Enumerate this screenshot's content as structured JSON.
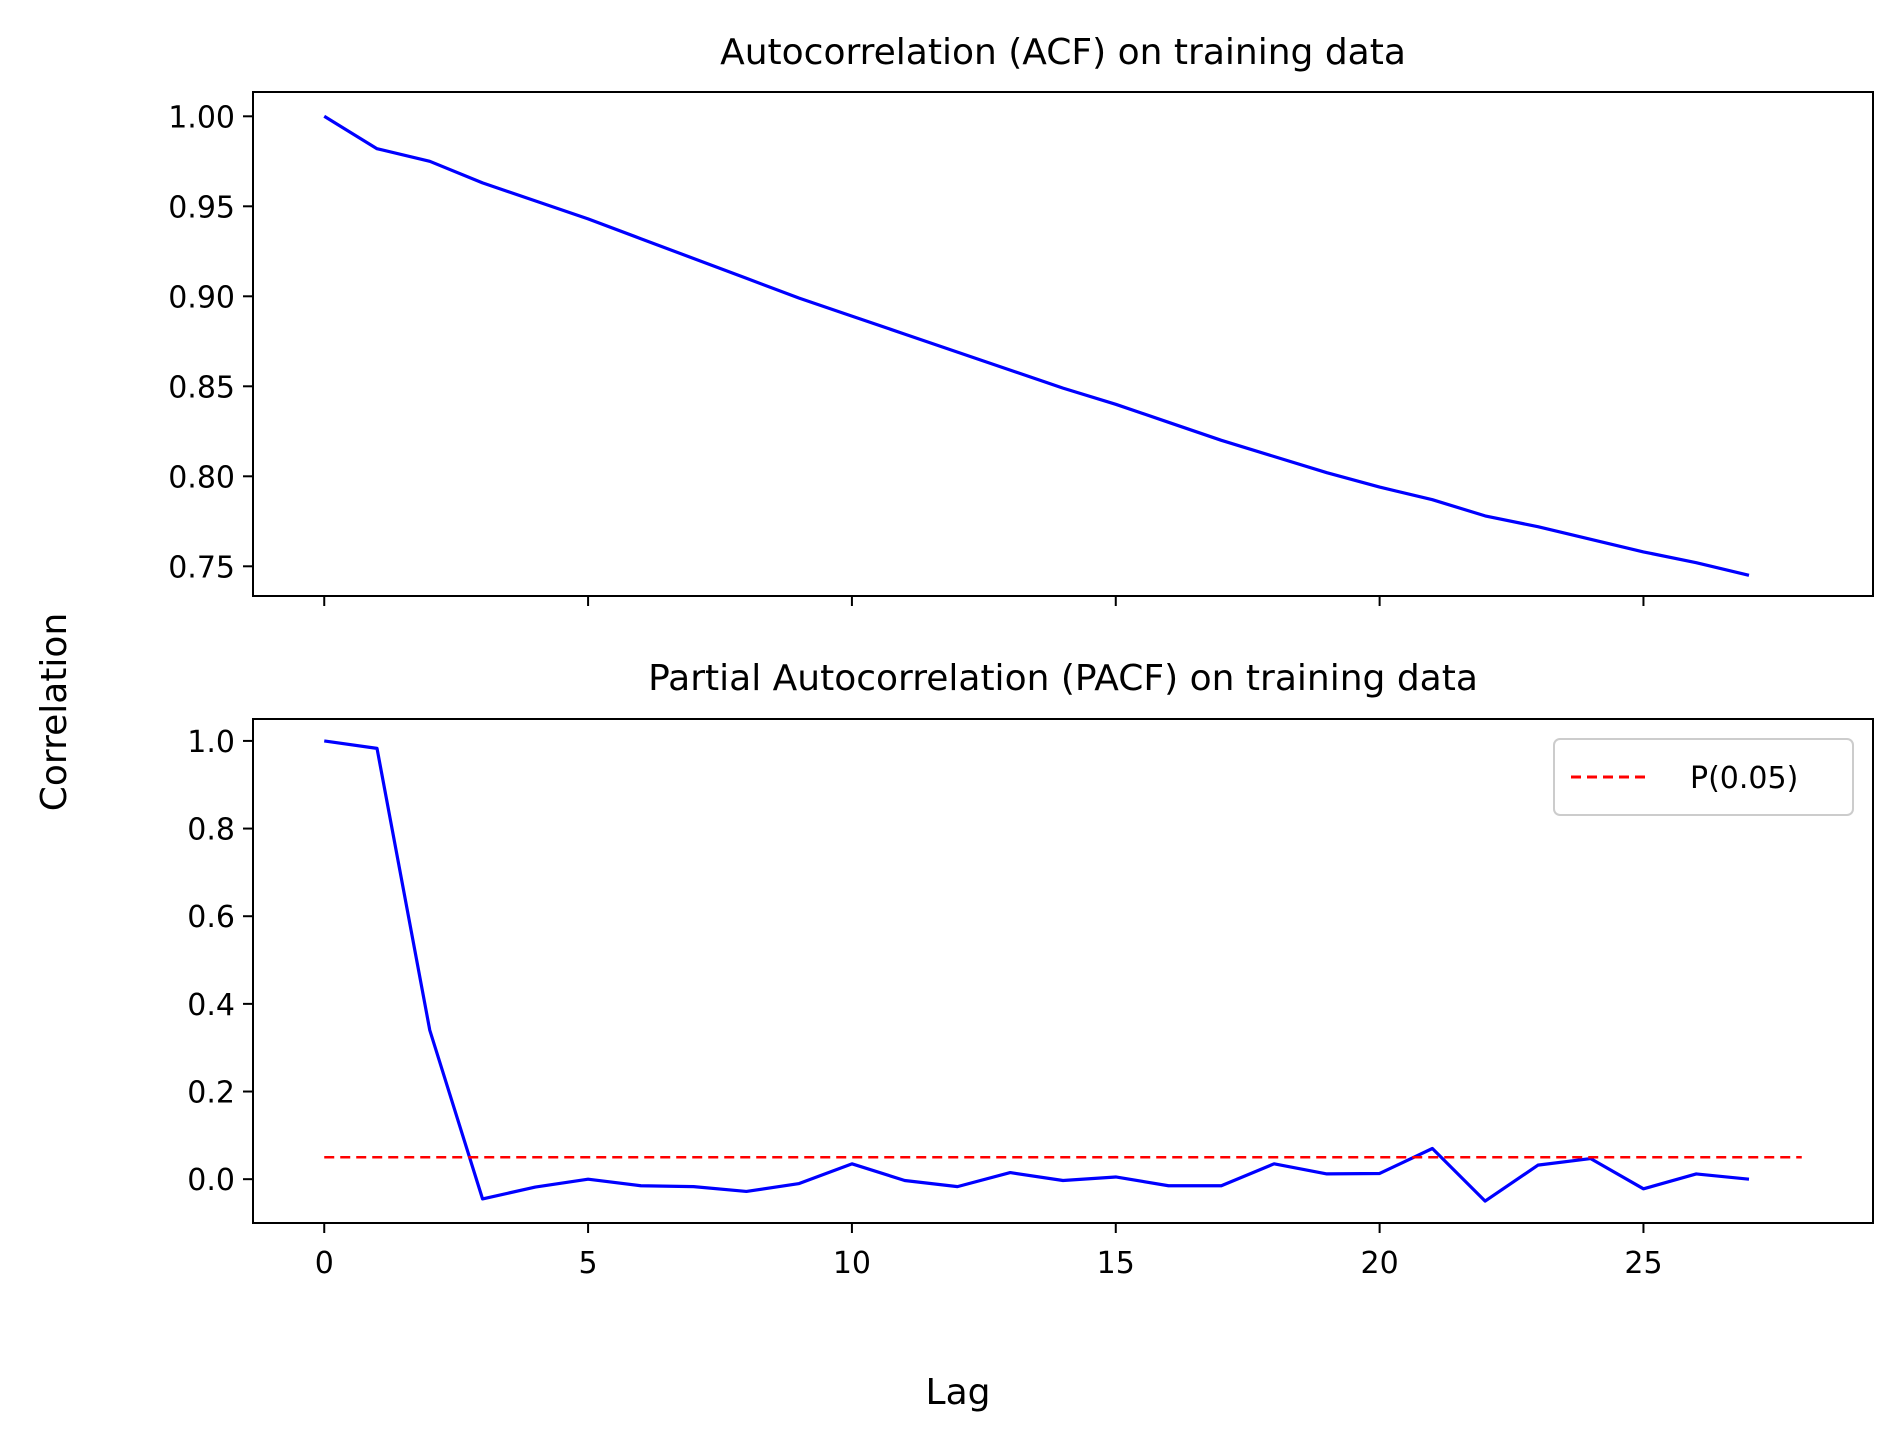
{
  "figure": {
    "xlabel": "Lag",
    "ylabel": "Correlation"
  },
  "chart_data": [
    {
      "type": "line",
      "title": "Autocorrelation (ACF) on training data",
      "xlim": [
        -1.35,
        29.35
      ],
      "ylim": [
        0.7335,
        1.0135
      ],
      "xticks": [
        0,
        5,
        10,
        15,
        20,
        25
      ],
      "show_xtick_labels": false,
      "yticks": [
        0.75,
        0.8,
        0.85,
        0.9,
        0.95,
        1.0
      ],
      "ytick_labels": [
        "0.75",
        "0.80",
        "0.85",
        "0.90",
        "0.95",
        "1.00"
      ],
      "grid": false,
      "series": [
        {
          "color": "#0000ff",
          "style": "solid",
          "x": [
            0,
            1,
            2,
            3,
            4,
            5,
            6,
            7,
            8,
            9,
            10,
            11,
            12,
            13,
            14,
            15,
            16,
            17,
            18,
            19,
            20,
            21,
            22,
            23,
            24,
            25,
            26,
            27
          ],
          "y": [
            1.0,
            0.982,
            0.975,
            0.963,
            0.953,
            0.943,
            0.932,
            0.921,
            0.91,
            0.899,
            0.889,
            0.879,
            0.869,
            0.859,
            0.849,
            0.84,
            0.83,
            0.82,
            0.811,
            0.802,
            0.794,
            0.787,
            0.778,
            0.772,
            0.765,
            0.758,
            0.752,
            0.745
          ]
        }
      ]
    },
    {
      "type": "line",
      "title": "Partial Autocorrelation (PACF) on training data",
      "xlim": [
        -1.35,
        29.35
      ],
      "ylim": [
        -0.1,
        1.05
      ],
      "xticks": [
        0,
        5,
        10,
        15,
        20,
        25
      ],
      "show_xtick_labels": true,
      "yticks": [
        0.0,
        0.2,
        0.4,
        0.6,
        0.8,
        1.0
      ],
      "ytick_labels": [
        "0.0",
        "0.2",
        "0.4",
        "0.6",
        "0.8",
        "1.0"
      ],
      "grid": false,
      "legend_position": "top-right",
      "series": [
        {
          "color": "#0000ff",
          "style": "solid",
          "x": [
            0,
            1,
            2,
            3,
            4,
            5,
            6,
            7,
            8,
            9,
            10,
            11,
            12,
            13,
            14,
            15,
            16,
            17,
            18,
            19,
            20,
            21,
            22,
            23,
            24,
            25,
            26,
            27
          ],
          "y": [
            1.0,
            0.983,
            0.34,
            -0.045,
            -0.018,
            0.0,
            -0.015,
            -0.017,
            -0.028,
            -0.01,
            0.035,
            -0.003,
            -0.017,
            0.015,
            -0.003,
            0.005,
            -0.015,
            -0.015,
            0.035,
            0.012,
            0.013,
            0.07,
            -0.05,
            0.032,
            0.047,
            -0.022,
            0.012,
            0.0
          ]
        },
        {
          "name": "P(0.05)",
          "color": "#ff0000",
          "style": "dashed",
          "x": [
            0,
            28
          ],
          "y": [
            0.05,
            0.05
          ]
        }
      ]
    }
  ]
}
